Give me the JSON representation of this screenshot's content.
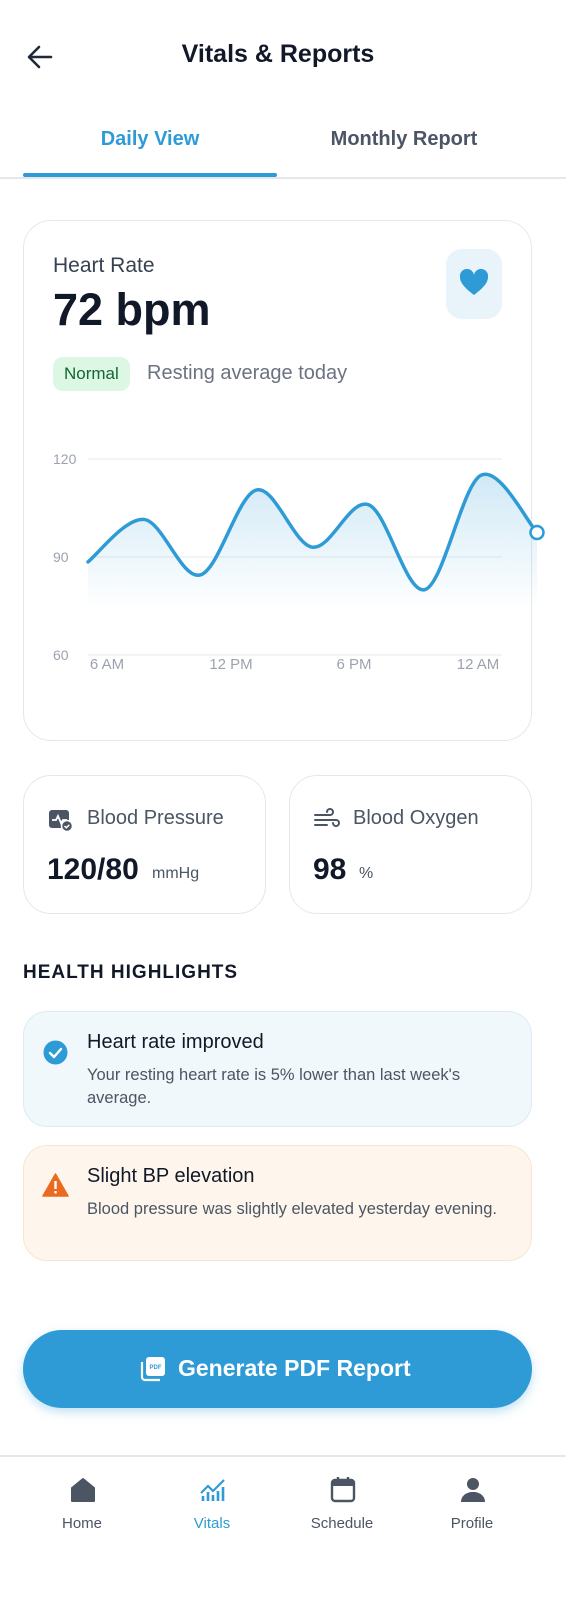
{
  "header": {
    "title": "Vitals & Reports"
  },
  "tabs": [
    "Daily View",
    "Monthly Report"
  ],
  "heart_rate": {
    "label": "Heart Rate",
    "value": "72 bpm",
    "status": "Normal",
    "note": "Resting average today"
  },
  "chart_data": {
    "type": "line",
    "ylim": [
      60,
      120
    ],
    "yticks": [
      60,
      90,
      120
    ],
    "xtick_labels": [
      "6 AM",
      "12 PM",
      "6 PM",
      "12 AM"
    ],
    "values": [
      88.5,
      101.5,
      84.5,
      110.5,
      93,
      106,
      80,
      115,
      97.5
    ],
    "color": "#2e9bd6",
    "grid": true
  },
  "vitals": [
    {
      "label": "Blood Pressure",
      "value": "120/80",
      "unit": "mmHg"
    },
    {
      "label": "Blood Oxygen",
      "value": "98",
      "unit": "%"
    }
  ],
  "highlights_title": "HEALTH HIGHLIGHTS",
  "highlights": [
    {
      "title": "Heart rate improved",
      "text": "Your resting heart rate is 5% lower than last week's average."
    },
    {
      "title": "Slight BP elevation",
      "text": "Blood pressure was slightly elevated yesterday evening."
    }
  ],
  "button": "Generate PDF Report",
  "nav": [
    "Home",
    "Vitals",
    "Schedule",
    "Profile"
  ]
}
